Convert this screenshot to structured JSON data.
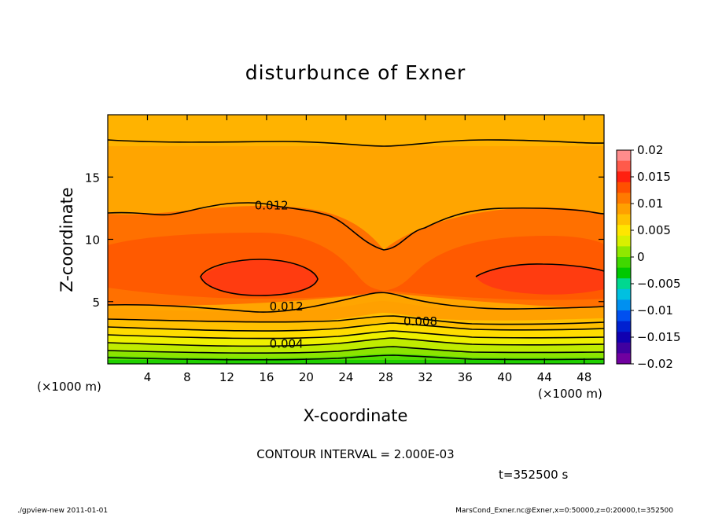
{
  "chart_data": {
    "type": "heatmap",
    "title": "disturbunce of Exner",
    "xlabel": "X-coordinate",
    "ylabel": "Z-coordinate",
    "x_unit_left": "(×1000 m)",
    "x_unit_right": "(×1000 m)",
    "xlim": [
      0,
      50
    ],
    "ylim": [
      0,
      20
    ],
    "x_ticks": [
      4,
      8,
      12,
      16,
      20,
      24,
      28,
      32,
      36,
      40,
      44,
      48
    ],
    "y_ticks": [
      5,
      10,
      15
    ],
    "colorbar": {
      "ticks": [
        "0.02",
        "0.015",
        "0.01",
        "0.005",
        "0",
        "−0.005",
        "−0.01",
        "−0.015",
        "−0.02"
      ],
      "range": [
        -0.02,
        0.02
      ],
      "colors": [
        "#ff8c8c",
        "#ff5a4a",
        "#ff2010",
        "#ff5000",
        "#ff7a00",
        "#ffa000",
        "#ffc200",
        "#ffe600",
        "#d8f000",
        "#90e800",
        "#40d800",
        "#00c800",
        "#00d890",
        "#00c0e0",
        "#0090f0",
        "#0050f0",
        "#0020d0",
        "#1000b0",
        "#4000a0",
        "#7000a0"
      ]
    },
    "contour_labels": [
      {
        "text": "0.012",
        "value": 0.012,
        "x": 16.5,
        "z": 12.7
      },
      {
        "text": "0.012",
        "value": 0.012,
        "x": 18,
        "z": 4.6
      },
      {
        "text": "0.008",
        "value": 0.008,
        "x": 31.5,
        "z": 3.4
      },
      {
        "text": "0.004",
        "value": 0.004,
        "x": 18,
        "z": 1.6
      }
    ],
    "contour_interval_text": "CONTOUR INTERVAL = 2.000E-03",
    "time_text": "t=352500 s"
  },
  "footer": {
    "left": "./gpview-new   2011-01-01",
    "right": "MarsCond_Exner.nc@Exner,x=0:50000,z=0:20000,t=352500"
  }
}
